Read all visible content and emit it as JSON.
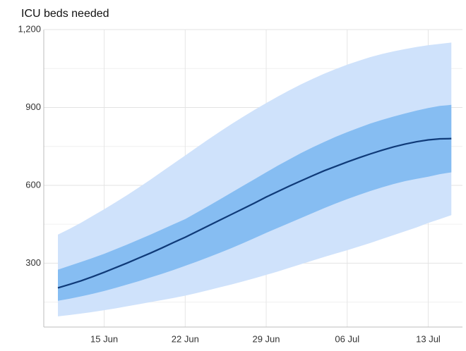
{
  "chart_data": {
    "type": "line",
    "title": "ICU beds needed",
    "categories": [
      null,
      null,
      null,
      null,
      "15 Jun",
      null,
      null,
      null,
      null,
      null,
      null,
      "22 Jun",
      null,
      null,
      null,
      null,
      null,
      null,
      "29 Jun",
      null,
      null,
      null,
      null,
      null,
      null,
      "06 Jul",
      null,
      null,
      null,
      null,
      null,
      null,
      "13 Jul",
      null,
      null
    ],
    "ylim": [
      54,
      1200
    ],
    "yticks": [
      {
        "value": 300,
        "label": "300"
      },
      {
        "value": 600,
        "label": "600"
      },
      {
        "value": 900,
        "label": "900"
      },
      {
        "value": 1200,
        "label": "1,200"
      }
    ],
    "minor_yticks": [
      150,
      450,
      750,
      1050
    ],
    "grid": true,
    "bands": [
      {
        "color": "#cfe2fb",
        "lower": [
          95,
          100,
          106,
          112,
          119,
          126,
          134,
          142,
          150,
          158,
          166,
          175,
          185,
          196,
          207,
          218,
          230,
          242,
          255,
          268,
          282,
          296,
          310,
          324,
          337,
          350,
          364,
          378,
          393,
          408,
          423,
          438,
          455,
          470,
          485
        ],
        "upper": [
          410,
          432,
          456,
          482,
          508,
          535,
          563,
          592,
          622,
          653,
          684,
          715,
          746,
          777,
          807,
          836,
          864,
          891,
          917,
          942,
          966,
          989,
          1010,
          1030,
          1048,
          1065,
          1080,
          1094,
          1106,
          1116,
          1125,
          1133,
          1140,
          1145,
          1150
        ]
      },
      {
        "color": "#86bdf2",
        "lower": [
          155,
          163,
          172,
          182,
          193,
          205,
          218,
          231,
          245,
          259,
          274,
          290,
          306,
          323,
          340,
          358,
          377,
          397,
          417,
          436,
          455,
          474,
          493,
          512,
          530,
          547,
          563,
          578,
          592,
          605,
          616,
          625,
          633,
          643,
          650
        ],
        "upper": [
          275,
          290,
          305,
          320,
          336,
          354,
          372,
          391,
          410,
          430,
          450,
          470,
          495,
          520,
          546,
          572,
          598,
          624,
          650,
          676,
          700,
          724,
          746,
          767,
          787,
          805,
          822,
          838,
          852,
          865,
          877,
          888,
          898,
          906,
          910
        ]
      }
    ],
    "series": [
      {
        "color": "#0f3a78",
        "values": [
          205,
          218,
          232,
          248,
          265,
          283,
          301,
          320,
          339,
          359,
          380,
          400,
          422,
          444,
          466,
          488,
          510,
          532,
          555,
          576,
          597,
          617,
          637,
          656,
          673,
          690,
          706,
          721,
          735,
          748,
          759,
          768,
          775,
          779,
          780
        ]
      }
    ]
  }
}
